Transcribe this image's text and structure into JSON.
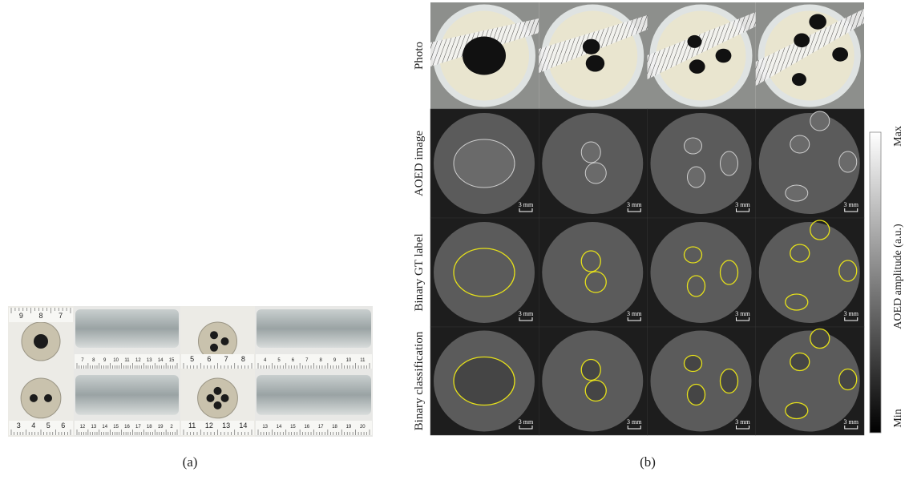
{
  "panel_a": {
    "caption": "(a)",
    "rulers": [
      [
        "9",
        "8",
        "7"
      ],
      [
        "7",
        "8",
        "9",
        "10",
        "11",
        "12",
        "13",
        "14",
        "15"
      ],
      [
        "5",
        "6",
        "7",
        "8"
      ],
      [
        "4",
        "5",
        "6",
        "7",
        "8",
        "9",
        "10",
        "11"
      ],
      [
        "3",
        "4",
        "5",
        "6"
      ],
      [
        "12",
        "13",
        "14",
        "15",
        "16",
        "17",
        "18",
        "19",
        "2"
      ],
      [
        "11",
        "12",
        "13",
        "14"
      ],
      [
        "13",
        "14",
        "15",
        "16",
        "17",
        "18",
        "19",
        "20"
      ]
    ]
  },
  "panel_b": {
    "caption": "(b)",
    "row_labels": [
      "Photo",
      "AOED image",
      "Binary GT label",
      "Binary classification"
    ],
    "scale_bar": "3 mm",
    "colorbar": {
      "max": "Max",
      "min": "Min",
      "label": "AOED amplitude (a.u.)"
    }
  }
}
